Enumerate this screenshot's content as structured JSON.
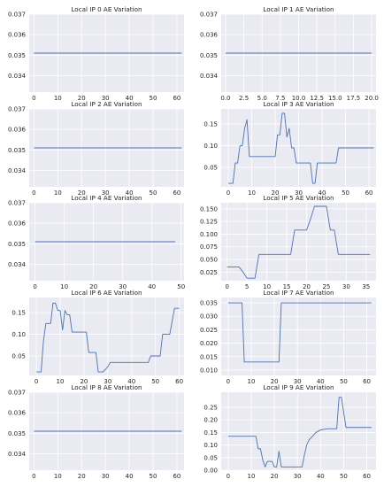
{
  "chart_data": [
    {
      "type": "line",
      "title": "Local IP 0 AE Variation",
      "xlim": [
        -2,
        63
      ],
      "ylim": [
        0.0332,
        0.037
      ],
      "xticks": [
        0,
        10,
        20,
        30,
        40,
        50,
        60
      ],
      "yticks": [
        0.034,
        0.035,
        0.036,
        0.037
      ],
      "xtick_labels": [
        "0",
        "10",
        "20",
        "30",
        "40",
        "50",
        "60"
      ],
      "ytick_labels": [
        "0.034",
        "0.035",
        "0.036",
        "0.037"
      ],
      "x": [
        0,
        62
      ],
      "y": [
        0.0351,
        0.0351
      ]
    },
    {
      "type": "line",
      "title": "Local IP 1 AE Variation",
      "xlim": [
        -0.6,
        20.6
      ],
      "ylim": [
        0.0332,
        0.037
      ],
      "xticks": [
        0,
        2.5,
        5,
        7.5,
        10,
        12.5,
        15,
        17.5,
        20
      ],
      "yticks": [
        0.034,
        0.035,
        0.036,
        0.037
      ],
      "xtick_labels": [
        "0.0",
        "2.5",
        "5.0",
        "7.5",
        "10.0",
        "12.5",
        "15.0",
        "17.5",
        "20.0"
      ],
      "ytick_labels": [
        "0.034",
        "0.035",
        "0.036",
        "0.037"
      ],
      "x": [
        0,
        20
      ],
      "y": [
        0.0351,
        0.0351
      ]
    },
    {
      "type": "line",
      "title": "Local IP 2 AE Variation",
      "xlim": [
        -2,
        63
      ],
      "ylim": [
        0.0332,
        0.037
      ],
      "xticks": [
        0,
        10,
        20,
        30,
        40,
        50,
        60
      ],
      "yticks": [
        0.034,
        0.035,
        0.036,
        0.037
      ],
      "xtick_labels": [
        "0",
        "10",
        "20",
        "30",
        "40",
        "50",
        "60"
      ],
      "ytick_labels": [
        "0.034",
        "0.035",
        "0.036",
        "0.037"
      ],
      "x": [
        0,
        62
      ],
      "y": [
        0.0351,
        0.0351
      ]
    },
    {
      "type": "line",
      "title": "Local IP 3 AE Variation",
      "xlim": [
        -3,
        63
      ],
      "ylim": [
        0.005,
        0.185
      ],
      "xticks": [
        0,
        10,
        20,
        30,
        40,
        50,
        60
      ],
      "yticks": [
        0.05,
        0.1,
        0.15
      ],
      "xtick_labels": [
        "0",
        "10",
        "20",
        "30",
        "40",
        "50",
        "60"
      ],
      "ytick_labels": [
        "0.05",
        "0.10",
        "0.15"
      ],
      "x": [
        0,
        2,
        3,
        4,
        5,
        6,
        7,
        8,
        9,
        10,
        20,
        21,
        22,
        23,
        24,
        25,
        26,
        27,
        28,
        29,
        30,
        31,
        35,
        36,
        37,
        38,
        39,
        45,
        46,
        47,
        48,
        49,
        62
      ],
      "y": [
        0.013,
        0.013,
        0.06,
        0.06,
        0.1,
        0.1,
        0.14,
        0.16,
        0.075,
        0.075,
        0.075,
        0.125,
        0.125,
        0.175,
        0.175,
        0.12,
        0.14,
        0.095,
        0.095,
        0.06,
        0.06,
        0.06,
        0.06,
        0.013,
        0.013,
        0.06,
        0.06,
        0.06,
        0.06,
        0.095,
        0.095,
        0.095,
        0.095
      ]
    },
    {
      "type": "line",
      "title": "Local IP 4 AE Variation",
      "xlim": [
        -2,
        51
      ],
      "ylim": [
        0.0332,
        0.037
      ],
      "xticks": [
        0,
        10,
        20,
        30,
        40,
        50
      ],
      "yticks": [
        0.034,
        0.035,
        0.036,
        0.037
      ],
      "xtick_labels": [
        "0",
        "10",
        "20",
        "30",
        "40",
        "50"
      ],
      "ytick_labels": [
        "0.034",
        "0.035",
        "0.036",
        "0.037"
      ],
      "x": [
        0,
        48
      ],
      "y": [
        0.0351,
        0.0351
      ]
    },
    {
      "type": "line",
      "title": "Local IP 5 AE Variation",
      "xlim": [
        -1.5,
        37.5
      ],
      "ylim": [
        0.008,
        0.162
      ],
      "xticks": [
        0,
        5,
        10,
        15,
        20,
        25,
        30,
        35
      ],
      "yticks": [
        0.025,
        0.05,
        0.075,
        0.1,
        0.125,
        0.15
      ],
      "xtick_labels": [
        "0",
        "5",
        "10",
        "15",
        "20",
        "25",
        "30",
        "35"
      ],
      "ytick_labels": [
        "0.025",
        "0.050",
        "0.075",
        "0.100",
        "0.125",
        "0.150"
      ],
      "x": [
        0,
        3,
        4,
        5,
        6,
        7,
        8,
        16,
        17,
        20,
        21,
        22,
        25,
        26,
        27,
        28,
        36
      ],
      "y": [
        0.035,
        0.035,
        0.025,
        0.013,
        0.013,
        0.013,
        0.06,
        0.06,
        0.108,
        0.108,
        0.13,
        0.155,
        0.155,
        0.108,
        0.108,
        0.06,
        0.06
      ]
    },
    {
      "type": "line",
      "title": "Local IP 6 AE Variation",
      "xlim": [
        -3,
        62
      ],
      "ylim": [
        0.005,
        0.185
      ],
      "xticks": [
        0,
        10,
        20,
        30,
        40,
        50,
        60
      ],
      "yticks": [
        0.05,
        0.1,
        0.15
      ],
      "xtick_labels": [
        "0",
        "10",
        "20",
        "30",
        "40",
        "50",
        "60"
      ],
      "ytick_labels": [
        "0.05",
        "0.10",
        "0.15"
      ],
      "x": [
        0,
        2,
        3,
        4,
        5,
        6,
        7,
        8,
        9,
        10,
        11,
        12,
        13,
        14,
        15,
        16,
        17,
        21,
        22,
        25,
        26,
        27,
        28,
        30,
        31,
        40,
        41,
        47,
        48,
        52,
        53,
        55,
        56,
        58,
        59,
        60
      ],
      "y": [
        0.013,
        0.013,
        0.085,
        0.125,
        0.125,
        0.125,
        0.172,
        0.172,
        0.155,
        0.155,
        0.11,
        0.155,
        0.145,
        0.145,
        0.105,
        0.105,
        0.105,
        0.105,
        0.058,
        0.058,
        0.013,
        0.013,
        0.013,
        0.025,
        0.035,
        0.035,
        0.035,
        0.035,
        0.05,
        0.05,
        0.1,
        0.1,
        0.1,
        0.16,
        0.16,
        0.16
      ]
    },
    {
      "type": "line",
      "title": "Local IP 7 AE Variation",
      "xlim": [
        -3,
        64
      ],
      "ylim": [
        0.008,
        0.037
      ],
      "xticks": [
        0,
        10,
        20,
        30,
        40,
        50,
        60
      ],
      "yticks": [
        0.01,
        0.015,
        0.02,
        0.025,
        0.03,
        0.035
      ],
      "xtick_labels": [
        "0",
        "10",
        "20",
        "30",
        "40",
        "50",
        "60"
      ],
      "ytick_labels": [
        "0.010",
        "0.015",
        "0.020",
        "0.025",
        "0.030",
        "0.035"
      ],
      "x": [
        0,
        6,
        7,
        22,
        23,
        62
      ],
      "y": [
        0.035,
        0.035,
        0.013,
        0.013,
        0.035,
        0.035
      ]
    },
    {
      "type": "line",
      "title": "Local IP 8 AE Variation",
      "xlim": [
        -2,
        63
      ],
      "ylim": [
        0.0332,
        0.037
      ],
      "xticks": [
        0,
        10,
        20,
        30,
        40,
        50,
        60
      ],
      "yticks": [
        0.034,
        0.035,
        0.036,
        0.037
      ],
      "xtick_labels": [
        "0",
        "10",
        "20",
        "30",
        "40",
        "50",
        "60"
      ],
      "ytick_labels": [
        "0.034",
        "0.035",
        "0.036",
        "0.037"
      ],
      "x": [
        0,
        62
      ],
      "y": [
        0.0351,
        0.0351
      ]
    },
    {
      "type": "line",
      "title": "Local IP 9 AE Variation",
      "xlim": [
        -3,
        64
      ],
      "ylim": [
        0.0,
        0.31
      ],
      "xticks": [
        0,
        10,
        20,
        30,
        40,
        50,
        60
      ],
      "yticks": [
        0.0,
        0.05,
        0.1,
        0.15,
        0.2,
        0.25
      ],
      "xtick_labels": [
        "0",
        "10",
        "20",
        "30",
        "40",
        "50",
        "60"
      ],
      "ytick_labels": [
        "0.00",
        "0.05",
        "0.10",
        "0.15",
        "0.20",
        "0.25"
      ],
      "x": [
        0,
        12,
        13,
        14,
        15,
        16,
        17,
        18,
        19,
        20,
        21,
        22,
        23,
        24,
        32,
        33,
        34,
        35,
        36,
        37,
        38,
        40,
        43,
        46,
        47,
        48,
        49,
        50,
        51,
        62
      ],
      "y": [
        0.135,
        0.135,
        0.085,
        0.085,
        0.04,
        0.013,
        0.035,
        0.035,
        0.035,
        0.013,
        0.013,
        0.075,
        0.013,
        0.013,
        0.013,
        0.06,
        0.1,
        0.12,
        0.13,
        0.14,
        0.15,
        0.16,
        0.165,
        0.165,
        0.165,
        0.29,
        0.29,
        0.23,
        0.17,
        0.17
      ]
    }
  ],
  "style": {
    "axes_bg": "#EAEAF2",
    "grid": "#ffffff",
    "line": "#4C72B0",
    "text": "#262626"
  }
}
